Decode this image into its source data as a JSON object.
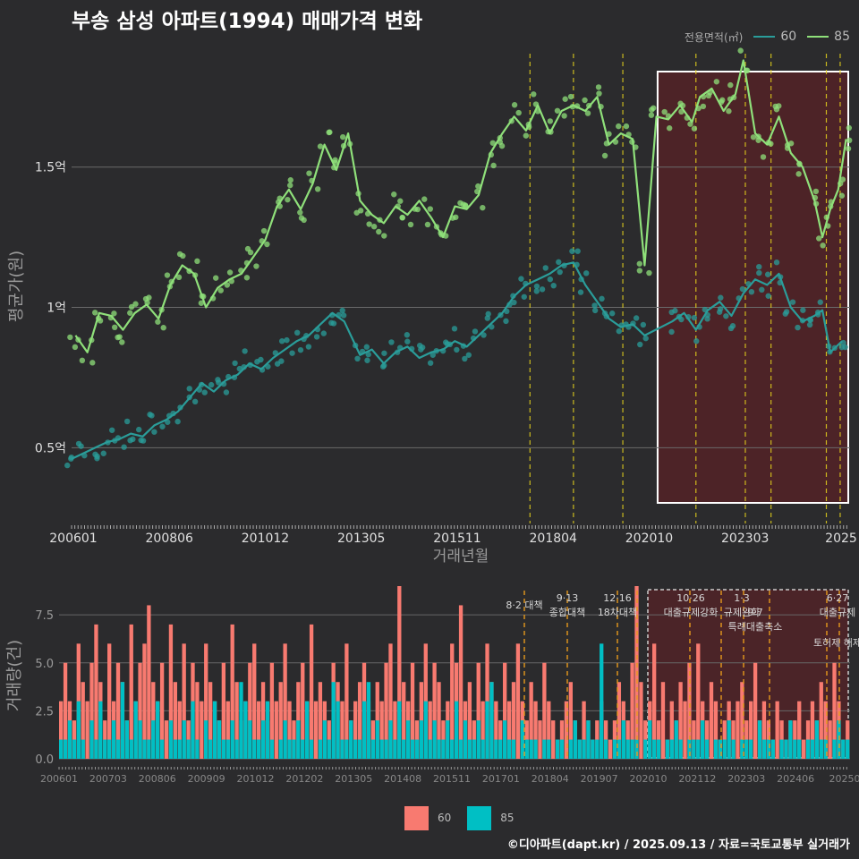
{
  "title": "부송 삼성 아파트(1994) 매매가격 변화",
  "legend_top": {
    "title": "전용면적(㎡)",
    "items": [
      {
        "label": "60",
        "color": "#2a9d9a"
      },
      {
        "label": "85",
        "color": "#8fe07a"
      }
    ]
  },
  "legend_bottom": {
    "items": [
      {
        "label": "60",
        "color": "#f87a70"
      },
      {
        "label": "85",
        "color": "#00bfc4"
      }
    ]
  },
  "caption": "©디아파트(dapt.kr) / 2025.09.13 / 자료=국토교통부 실거래가",
  "chart_data": [
    {
      "type": "line",
      "xlabel": "거래년월",
      "ylabel": "평균가(원)",
      "x_ticks": [
        "200601",
        "200806",
        "201012",
        "201305",
        "201511",
        "201804",
        "202010",
        "202303",
        "2025"
      ],
      "y_ticks": [
        {
          "value": 0.5,
          "label": "0.5억"
        },
        {
          "value": 1.0,
          "label": "1억"
        },
        {
          "value": 1.5,
          "label": "1.5억"
        }
      ],
      "xlim": [
        2006.0,
        2025.7
      ],
      "ylim": [
        0.23,
        1.92
      ],
      "policy_lines": [
        2017.6,
        2018.7,
        2019.95,
        2021.8,
        2023.05,
        2023.7,
        2025.1,
        2025.45
      ],
      "highlight_range": [
        2020.83,
        2025.7
      ],
      "series": [
        {
          "name": "60",
          "points": [
            [
              2006.0,
              0.46
            ],
            [
              2006.3,
              0.48
            ],
            [
              2006.6,
              0.5
            ],
            [
              2006.9,
              0.52
            ],
            [
              2007.2,
              0.53
            ],
            [
              2007.5,
              0.55
            ],
            [
              2007.8,
              0.54
            ],
            [
              2008.1,
              0.58
            ],
            [
              2008.4,
              0.6
            ],
            [
              2008.7,
              0.63
            ],
            [
              2009.0,
              0.68
            ],
            [
              2009.3,
              0.73
            ],
            [
              2009.6,
              0.7
            ],
            [
              2009.9,
              0.74
            ],
            [
              2010.2,
              0.76
            ],
            [
              2010.5,
              0.8
            ],
            [
              2010.8,
              0.78
            ],
            [
              2011.1,
              0.82
            ],
            [
              2011.4,
              0.85
            ],
            [
              2011.7,
              0.88
            ],
            [
              2012.0,
              0.9
            ],
            [
              2012.3,
              0.94
            ],
            [
              2012.6,
              0.98
            ],
            [
              2012.9,
              0.95
            ],
            [
              2013.3,
              0.83
            ],
            [
              2013.6,
              0.85
            ],
            [
              2013.9,
              0.8
            ],
            [
              2014.2,
              0.84
            ],
            [
              2014.5,
              0.86
            ],
            [
              2014.8,
              0.82
            ],
            [
              2015.1,
              0.84
            ],
            [
              2015.4,
              0.85
            ],
            [
              2015.7,
              0.88
            ],
            [
              2016.0,
              0.86
            ],
            [
              2016.3,
              0.9
            ],
            [
              2016.6,
              0.94
            ],
            [
              2016.9,
              0.98
            ],
            [
              2017.2,
              1.04
            ],
            [
              2017.5,
              1.08
            ],
            [
              2017.8,
              1.1
            ],
            [
              2018.1,
              1.12
            ],
            [
              2018.4,
              1.15
            ],
            [
              2018.7,
              1.16
            ],
            [
              2019.0,
              1.08
            ],
            [
              2019.3,
              1.02
            ],
            [
              2019.6,
              0.96
            ],
            [
              2019.9,
              0.93
            ],
            [
              2020.2,
              0.94
            ],
            [
              2020.5,
              0.9
            ],
            [
              2021.2,
              0.95
            ],
            [
              2021.5,
              0.98
            ],
            [
              2021.8,
              0.92
            ],
            [
              2022.1,
              0.99
            ],
            [
              2022.4,
              1.02
            ],
            [
              2022.7,
              0.97
            ],
            [
              2023.0,
              1.05
            ],
            [
              2023.3,
              1.1
            ],
            [
              2023.6,
              1.08
            ],
            [
              2023.9,
              1.12
            ],
            [
              2024.2,
              1.0
            ],
            [
              2024.5,
              0.95
            ],
            [
              2024.8,
              0.97
            ],
            [
              2025.0,
              0.99
            ],
            [
              2025.2,
              0.84
            ],
            [
              2025.5,
              0.88
            ]
          ]
        },
        {
          "name": "85",
          "points": [
            [
              2006.1,
              0.9
            ],
            [
              2006.4,
              0.84
            ],
            [
              2006.7,
              0.98
            ],
            [
              2007.0,
              0.97
            ],
            [
              2007.3,
              0.92
            ],
            [
              2007.6,
              0.98
            ],
            [
              2007.9,
              1.01
            ],
            [
              2008.2,
              0.96
            ],
            [
              2008.5,
              1.08
            ],
            [
              2008.8,
              1.15
            ],
            [
              2009.1,
              1.12
            ],
            [
              2009.4,
              1.0
            ],
            [
              2009.7,
              1.07
            ],
            [
              2010.0,
              1.1
            ],
            [
              2010.3,
              1.12
            ],
            [
              2010.6,
              1.18
            ],
            [
              2010.9,
              1.24
            ],
            [
              2011.2,
              1.36
            ],
            [
              2011.5,
              1.42
            ],
            [
              2011.8,
              1.35
            ],
            [
              2012.1,
              1.44
            ],
            [
              2012.4,
              1.58
            ],
            [
              2012.7,
              1.49
            ],
            [
              2013.0,
              1.62
            ],
            [
              2013.3,
              1.38
            ],
            [
              2013.6,
              1.33
            ],
            [
              2013.9,
              1.3
            ],
            [
              2014.2,
              1.36
            ],
            [
              2014.5,
              1.33
            ],
            [
              2014.8,
              1.38
            ],
            [
              2015.1,
              1.32
            ],
            [
              2015.4,
              1.25
            ],
            [
              2015.7,
              1.36
            ],
            [
              2016.0,
              1.35
            ],
            [
              2016.3,
              1.4
            ],
            [
              2016.6,
              1.55
            ],
            [
              2016.9,
              1.62
            ],
            [
              2017.2,
              1.68
            ],
            [
              2017.5,
              1.63
            ],
            [
              2017.8,
              1.72
            ],
            [
              2018.1,
              1.62
            ],
            [
              2018.4,
              1.7
            ],
            [
              2018.7,
              1.72
            ],
            [
              2019.0,
              1.7
            ],
            [
              2019.3,
              1.75
            ],
            [
              2019.6,
              1.58
            ],
            [
              2019.9,
              1.62
            ],
            [
              2020.2,
              1.6
            ],
            [
              2020.5,
              1.15
            ],
            [
              2020.8,
              1.68
            ],
            [
              2021.1,
              1.67
            ],
            [
              2021.4,
              1.72
            ],
            [
              2021.7,
              1.66
            ],
            [
              2021.9,
              1.75
            ],
            [
              2022.2,
              1.78
            ],
            [
              2022.5,
              1.7
            ],
            [
              2022.8,
              1.76
            ],
            [
              2023.0,
              1.88
            ],
            [
              2023.3,
              1.62
            ],
            [
              2023.6,
              1.58
            ],
            [
              2023.9,
              1.68
            ],
            [
              2024.2,
              1.55
            ],
            [
              2024.5,
              1.5
            ],
            [
              2024.8,
              1.38
            ],
            [
              2025.0,
              1.25
            ],
            [
              2025.2,
              1.35
            ],
            [
              2025.4,
              1.42
            ],
            [
              2025.6,
              1.6
            ]
          ]
        }
      ]
    },
    {
      "type": "bar",
      "ylabel": "거래량(건)",
      "x_ticks": [
        "200601",
        "200703",
        "200806",
        "200909",
        "201012",
        "201202",
        "201305",
        "201408",
        "201511",
        "201701",
        "201804",
        "201907",
        "202010",
        "202112",
        "202303",
        "202406",
        "20250"
      ],
      "y_ticks": [
        {
          "value": 0,
          "label": "0.0"
        },
        {
          "value": 2.5,
          "label": "2.5"
        },
        {
          "value": 5,
          "label": "5.0"
        },
        {
          "value": 7.5,
          "label": "7.5"
        }
      ],
      "ylim": [
        0,
        9
      ],
      "annotations": [
        {
          "date": "8·2 대책",
          "text": ""
        },
        {
          "date": "9·13",
          "text": "종합대책"
        },
        {
          "date": "12·16",
          "text": "18차대책"
        },
        {
          "date": "10·26",
          "text": "대출규제강화"
        },
        {
          "date": "1·3",
          "text": "규제완화"
        },
        {
          "date": "9·7",
          "text": "특례대출축소"
        },
        {
          "date": "6·27",
          "text": "대출규제"
        },
        {
          "date": "",
          "text": "토허제 해제"
        }
      ],
      "series": [
        {
          "name": "60",
          "values": [
            3,
            5,
            3,
            2,
            6,
            4,
            3,
            5,
            7,
            4,
            2,
            6,
            3,
            5,
            4,
            2,
            7,
            3,
            5,
            6,
            8,
            4,
            3,
            5,
            2,
            7,
            4,
            3,
            6,
            2,
            5,
            4,
            3,
            6,
            4,
            3,
            2,
            5,
            3,
            7,
            4,
            2,
            3,
            5,
            6,
            3,
            4,
            2,
            5,
            3,
            4,
            6,
            3,
            2,
            4,
            5,
            3,
            7,
            3,
            4,
            3,
            2,
            5,
            4,
            3,
            6,
            2,
            3,
            4,
            5,
            3,
            2,
            4,
            3,
            5,
            6,
            3,
            9,
            4,
            3,
            5,
            2,
            4,
            6,
            3,
            5,
            4,
            2,
            3,
            6,
            5,
            8,
            3,
            4,
            2,
            5,
            3,
            6,
            4,
            3,
            2,
            5,
            3,
            4,
            6,
            3,
            2,
            4,
            3,
            2,
            5,
            3,
            2,
            1,
            2,
            3,
            4,
            2,
            1,
            3,
            2,
            1,
            2,
            3,
            2,
            1,
            2,
            4,
            3,
            2,
            5,
            9,
            4,
            2,
            3,
            6,
            2,
            4,
            1,
            3,
            2,
            4,
            3,
            5,
            2,
            6,
            3,
            2,
            4,
            3,
            1,
            2,
            3,
            2,
            3,
            4,
            2,
            3,
            5,
            2,
            3,
            2,
            1,
            3,
            2,
            1,
            2,
            2,
            3,
            1,
            2,
            3,
            2,
            4,
            3,
            2,
            5,
            3,
            1,
            2
          ]
        },
        {
          "name": "85",
          "values": [
            1,
            1,
            2,
            1,
            3,
            1,
            0,
            2,
            1,
            3,
            1,
            1,
            2,
            1,
            4,
            2,
            1,
            3,
            2,
            1,
            1,
            2,
            3,
            1,
            0,
            2,
            1,
            1,
            2,
            1,
            3,
            1,
            0,
            2,
            1,
            3,
            2,
            1,
            1,
            2,
            1,
            4,
            3,
            2,
            1,
            1,
            2,
            3,
            1,
            0,
            1,
            2,
            1,
            1,
            2,
            1,
            3,
            1,
            0,
            1,
            2,
            1,
            4,
            3,
            1,
            1,
            2,
            1,
            1,
            3,
            4,
            1,
            2,
            1,
            1,
            2,
            1,
            3,
            1,
            2,
            1,
            1,
            2,
            3,
            1,
            2,
            1,
            1,
            2,
            1,
            3,
            1,
            2,
            1,
            1,
            2,
            1,
            3,
            4,
            1,
            1,
            2,
            1,
            1,
            0,
            2,
            1,
            1,
            1,
            0,
            1,
            1,
            0,
            1,
            1,
            0,
            1,
            2,
            1,
            1,
            2,
            1,
            1,
            6,
            1,
            0,
            1,
            1,
            2,
            1,
            1,
            1,
            0,
            1,
            2,
            1,
            1,
            0,
            1,
            1,
            2,
            1,
            0,
            1,
            1,
            1,
            2,
            1,
            0,
            1,
            1,
            1,
            2,
            1,
            0,
            1,
            1,
            1,
            0,
            2,
            1,
            1,
            1,
            0,
            1,
            1,
            2,
            1,
            1,
            0,
            1,
            1,
            2,
            1,
            1,
            0,
            1,
            2,
            1,
            1
          ]
        }
      ]
    }
  ]
}
